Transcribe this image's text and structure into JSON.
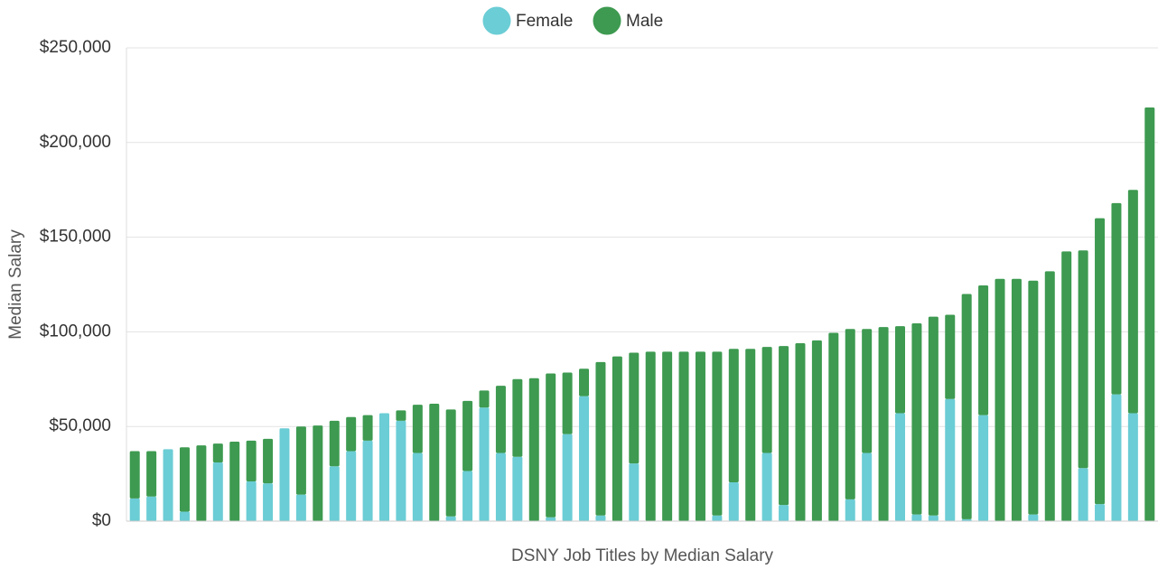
{
  "chart_data": {
    "type": "stacked_bar",
    "xlabel": "DSNY Job Titles by Median Salary",
    "ylabel": "Median Salary",
    "categories": [
      null,
      null,
      null,
      null,
      null,
      null,
      null,
      null,
      null,
      null,
      null,
      null,
      null,
      null,
      null,
      null,
      null,
      null,
      null,
      null,
      null,
      null,
      null,
      null,
      null,
      null,
      null,
      null,
      null,
      null,
      null,
      null,
      null,
      null,
      null,
      null,
      null,
      null,
      null,
      null,
      null,
      null,
      null,
      null,
      null,
      null,
      null,
      null,
      null,
      null,
      null,
      null,
      null,
      null,
      null,
      null,
      null,
      null,
      null,
      null,
      null,
      null
    ],
    "series": [
      {
        "name": "Female",
        "color": "#6bcdd5",
        "values": [
          12000,
          13000,
          38000,
          5000,
          0,
          31000,
          0,
          21000,
          20000,
          49000,
          14000,
          0,
          29000,
          37000,
          42500,
          57000,
          53000,
          36000,
          0,
          2500,
          26500,
          60000,
          36000,
          34000,
          0,
          2000,
          46000,
          66000,
          3000,
          0,
          30500,
          0,
          0,
          0,
          0,
          3000,
          20500,
          0,
          36000,
          8500,
          0,
          0,
          0,
          11500,
          36000,
          0,
          57000,
          3500,
          3000,
          64500,
          1000,
          56000,
          0,
          0,
          3500,
          0,
          0,
          28000,
          9000,
          67000,
          57000,
          0
        ]
      },
      {
        "name": "Male",
        "color": "#3d9a50",
        "values": [
          25000,
          24000,
          0,
          34000,
          40000,
          10000,
          42000,
          21500,
          23500,
          0,
          36000,
          50500,
          24000,
          18000,
          13500,
          0,
          5500,
          25500,
          62000,
          56500,
          37000,
          9000,
          35500,
          41000,
          75500,
          76000,
          32500,
          14500,
          81000,
          87000,
          58500,
          89500,
          89500,
          89500,
          89500,
          86500,
          70500,
          91000,
          56000,
          84000,
          94000,
          95500,
          99500,
          90000,
          65500,
          102500,
          46000,
          101000,
          105000,
          44500,
          119000,
          68500,
          128000,
          128000,
          123500,
          132000,
          142500,
          115000,
          151000,
          101000,
          118000,
          218500
        ]
      }
    ],
    "ylim": [
      0,
      250000
    ],
    "yticks": [
      {
        "value": 0,
        "label": "$0"
      },
      {
        "value": 50000,
        "label": "$50,000"
      },
      {
        "value": 100000,
        "label": "$100,000"
      },
      {
        "value": 150000,
        "label": "$150,000"
      },
      {
        "value": 200000,
        "label": "$200,000"
      },
      {
        "value": 250000,
        "label": "$250,000"
      }
    ],
    "grid": true,
    "legend": "top"
  }
}
